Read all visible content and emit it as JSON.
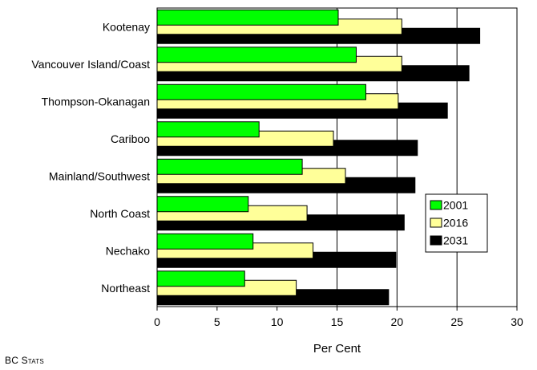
{
  "chart_data": {
    "type": "bar",
    "orientation": "horizontal",
    "title": "",
    "xlabel": "Per Cent",
    "ylabel": "",
    "xlim": [
      0,
      30
    ],
    "x_ticks": [
      0,
      5,
      10,
      15,
      20,
      25,
      30
    ],
    "grid": "vertical at 15, 20, 25",
    "categories": [
      "Kootenay",
      "Vancouver Island/Coast",
      "Thompson-Okanagan",
      "Cariboo",
      "Mainland/Southwest",
      "North Coast",
      "Nechako",
      "Northeast"
    ],
    "series": [
      {
        "name": "2001",
        "color": "#00ff00",
        "values": [
          15.1,
          16.6,
          17.4,
          8.5,
          12.1,
          7.6,
          8.0,
          7.3
        ]
      },
      {
        "name": "2016",
        "color": "#ffff99",
        "values": [
          20.4,
          20.4,
          20.1,
          14.7,
          15.7,
          12.5,
          13.0,
          11.6
        ]
      },
      {
        "name": "2031",
        "color": "#000000",
        "values": [
          26.9,
          26.0,
          24.2,
          21.7,
          21.5,
          20.6,
          19.9,
          19.3
        ]
      }
    ],
    "legend": {
      "placement": "right-lower-inside",
      "entries": [
        "2001",
        "2016",
        "2031"
      ]
    }
  },
  "footer": {
    "source": "BC Stats"
  }
}
